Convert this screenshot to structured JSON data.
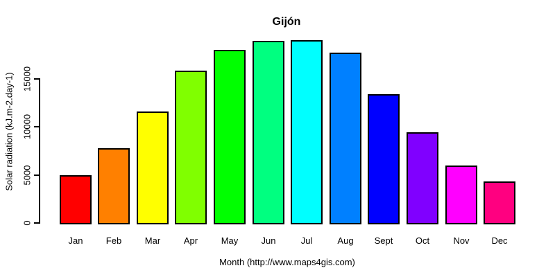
{
  "chart_data": {
    "type": "bar",
    "title": "Gijón",
    "ylabel": "Solar radiation (kJ.m-2.day-1)",
    "xlabel": "Month (http://www.maps4gis.com)",
    "categories": [
      "Jan",
      "Feb",
      "Mar",
      "Apr",
      "May",
      "Jun",
      "Jul",
      "Aug",
      "Sept",
      "Oct",
      "Nov",
      "Dec"
    ],
    "values": [
      5000,
      7800,
      11600,
      15900,
      18050,
      18950,
      19050,
      17750,
      13400,
      9450,
      6000,
      4300
    ],
    "colors": [
      "#FF0000",
      "#FF8000",
      "#FFFF00",
      "#80FF00",
      "#00FF00",
      "#00FF80",
      "#00FFFF",
      "#0080FF",
      "#0000FF",
      "#8000FF",
      "#FF00FF",
      "#FF0080"
    ],
    "yticks": [
      0,
      5000,
      10000,
      15000
    ],
    "ytick_labels": [
      "0",
      "5000",
      "10000",
      "15000"
    ],
    "ylim": [
      0,
      19600
    ],
    "grid": false,
    "legend": "none",
    "bar_border_color": "#000000",
    "axis_color": "#000000",
    "background": "#FFFFFF"
  }
}
